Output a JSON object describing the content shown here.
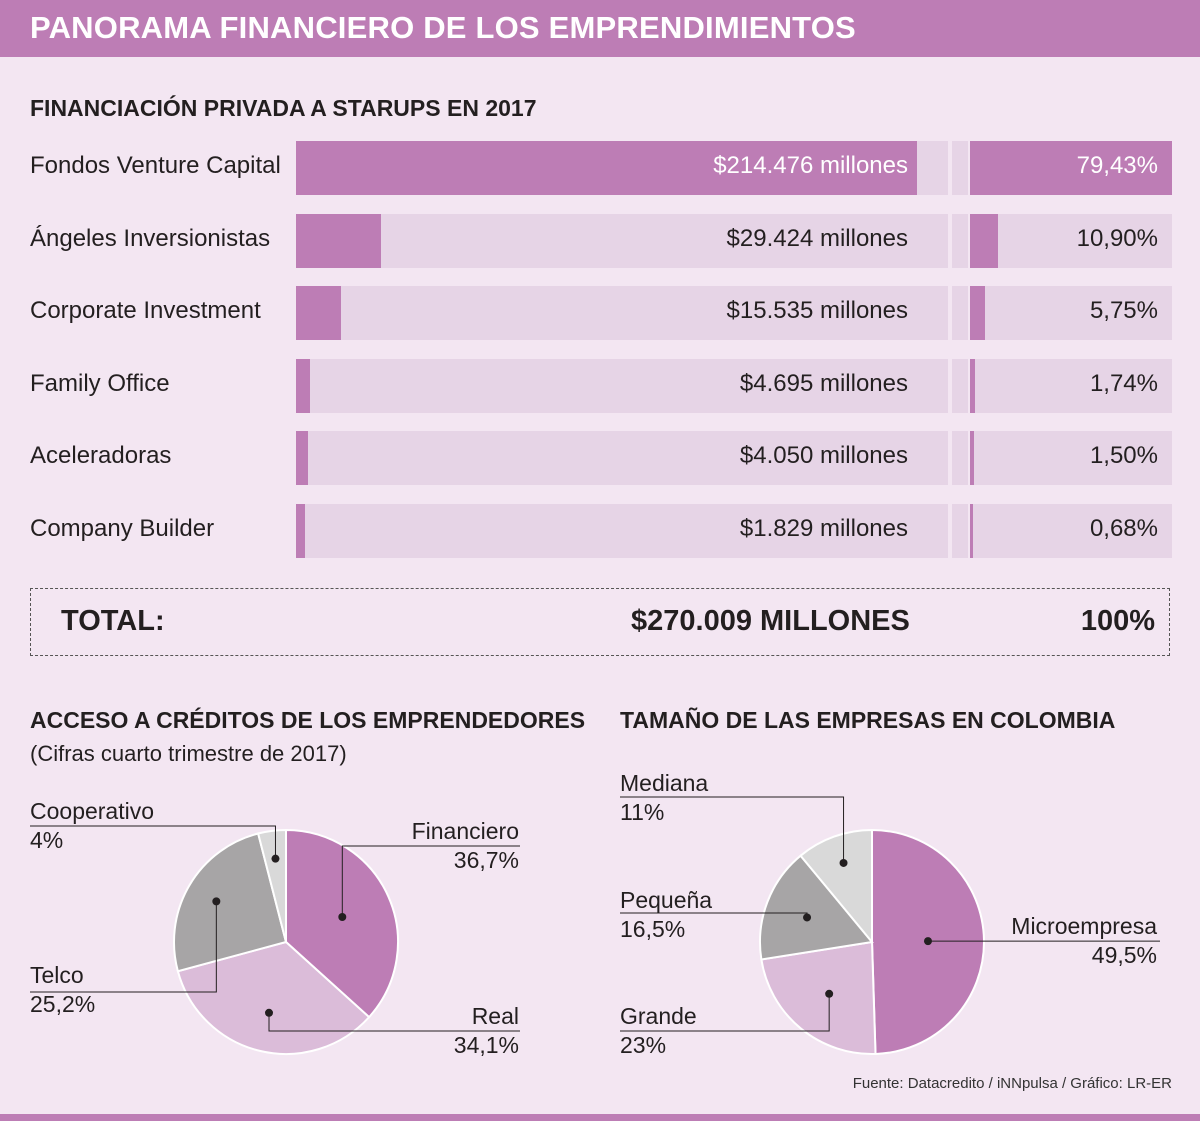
{
  "header": {
    "title": "PANORAMA FINANCIERO DE LOS EMPRENDIMIENTOS"
  },
  "colors": {
    "accent": "#bd7db5",
    "light": "#e6d4e6",
    "lighter": "#dbbcd9",
    "grey": "#a7a5a6",
    "light_grey": "#d9d9d9",
    "background": "#f3e6f2"
  },
  "chart_data": [
    {
      "type": "bar",
      "title": "FINANCIACIÓN PRIVADA A STARUPS EN 2017",
      "categories": [
        "Fondos Venture Capital",
        "Ángeles Inversionistas",
        "Corporate Investment",
        "Family Office",
        "Aceleradoras",
        "Company Builder"
      ],
      "values": [
        214476,
        29424,
        15535,
        4695,
        4050,
        1829
      ],
      "value_labels": [
        "$214.476 millones",
        "$29.424 millones",
        "$15.535 millones",
        "$4.695 millones",
        "$4.050 millones",
        "$1.829 millones"
      ],
      "percentages": [
        79.43,
        10.9,
        5.75,
        1.74,
        1.5,
        0.68
      ],
      "percentage_labels": [
        "79,43%",
        "10,90%",
        "5,75%",
        "1,74%",
        "1,50%",
        "0,68%"
      ],
      "total": {
        "label": "TOTAL:",
        "value": "$270.009 MILLONES",
        "percentage": "100%"
      }
    },
    {
      "type": "pie",
      "title": "ACCESO A CRÉDITOS DE LOS EMPRENDEDORES",
      "subtitle": "(Cifras cuarto trimestre de 2017)",
      "slices": [
        {
          "name": "Financiero",
          "value": 36.7,
          "label": "36,7%",
          "color": "#bd7db5"
        },
        {
          "name": "Real",
          "value": 34.1,
          "label": "34,1%",
          "color": "#dbbcd9"
        },
        {
          "name": "Telco",
          "value": 25.2,
          "label": "25,2%",
          "color": "#a7a5a6"
        },
        {
          "name": "Cooperativo",
          "value": 4,
          "label": "4%",
          "color": "#d9d9d9"
        }
      ]
    },
    {
      "type": "pie",
      "title": "TAMAÑO DE LAS EMPRESAS EN COLOMBIA",
      "slices": [
        {
          "name": "Microempresa",
          "value": 49.5,
          "label": "49,5%",
          "color": "#bd7db5"
        },
        {
          "name": "Grande",
          "value": 23,
          "label": "23%",
          "color": "#dbbcd9"
        },
        {
          "name": "Pequeña",
          "value": 16.5,
          "label": "16,5%",
          "color": "#a7a5a6"
        },
        {
          "name": "Mediana",
          "value": 11,
          "label": "11%",
          "color": "#d9d9d9"
        }
      ]
    }
  ],
  "source": "Fuente: Datacredito / iNNpulsa / Gráfico: LR-ER"
}
